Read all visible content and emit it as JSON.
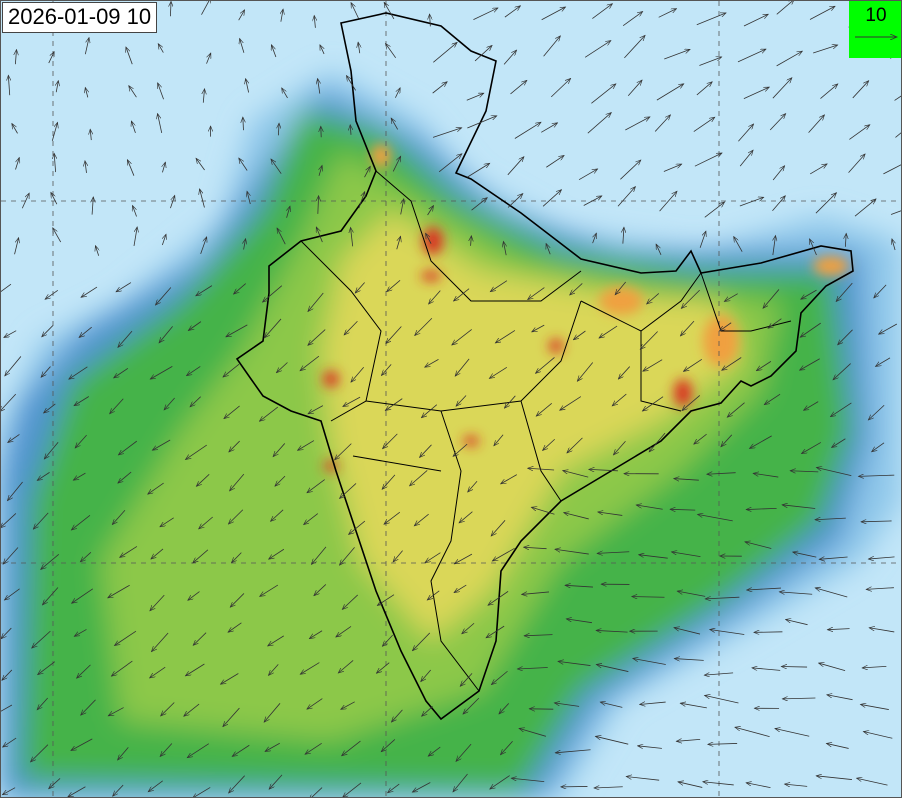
{
  "map": {
    "timestamp": "2026-01-09 10",
    "legend": {
      "reference_vector_value": "10",
      "background_color": "#00ff00"
    },
    "colors": {
      "ocean_light": "#c2e6f8",
      "low": "#8fc7ea",
      "mid_blue": "#4f93cf",
      "green": "#44b34a",
      "light_green": "#8cc84a",
      "yellow": "#e8d95a",
      "orange": "#f0a040",
      "red": "#d83020",
      "boundary": "#000000"
    },
    "overlay": "wind vectors"
  }
}
